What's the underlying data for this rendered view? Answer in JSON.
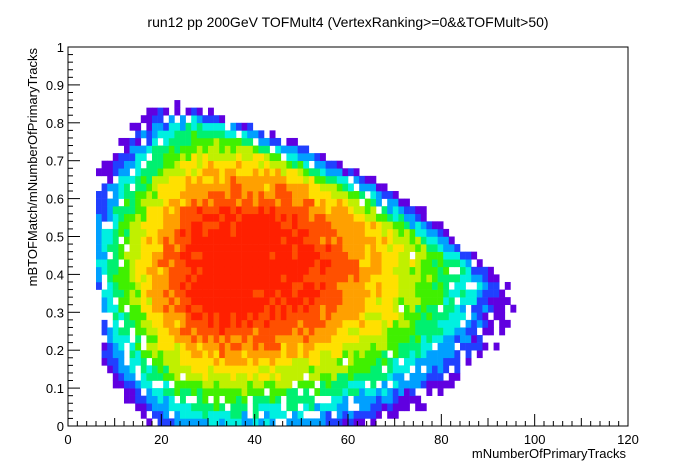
{
  "chart_data": {
    "type": "heatmap",
    "title": "run12 pp 200GeV TOFMult4 (VertexRanking>=0&&TOFMult>50)",
    "xlabel": "mNumberOfPrimaryTracks",
    "ylabel": "mBTOFMatch/mNumberOfPrimaryTracks",
    "xlim": [
      0,
      120
    ],
    "ylim": [
      0,
      1
    ],
    "xticks": [
      "0",
      "20",
      "40",
      "60",
      "80",
      "100",
      "120"
    ],
    "yticks": [
      "0",
      "0.1",
      "0.2",
      "0.3",
      "0.4",
      "0.5",
      "0.6",
      "0.7",
      "0.8",
      "0.9",
      "1"
    ],
    "x_bin_width": 1.2,
    "y_bin_width": 0.02,
    "colormap": [
      "#6000e0",
      "#2040ff",
      "#00a0ff",
      "#00f0e0",
      "#00f070",
      "#40f000",
      "#c0f000",
      "#ffe000",
      "#ffa000",
      "#ff5000",
      "#ff2000"
    ],
    "density_model": {
      "peak_x": 34,
      "peak_y": 0.42,
      "sigma_x_low": 11,
      "sigma_x_high": 22,
      "sigma_y": 0.17,
      "x_tail": 116,
      "y_ceiling": 0.95
    }
  }
}
